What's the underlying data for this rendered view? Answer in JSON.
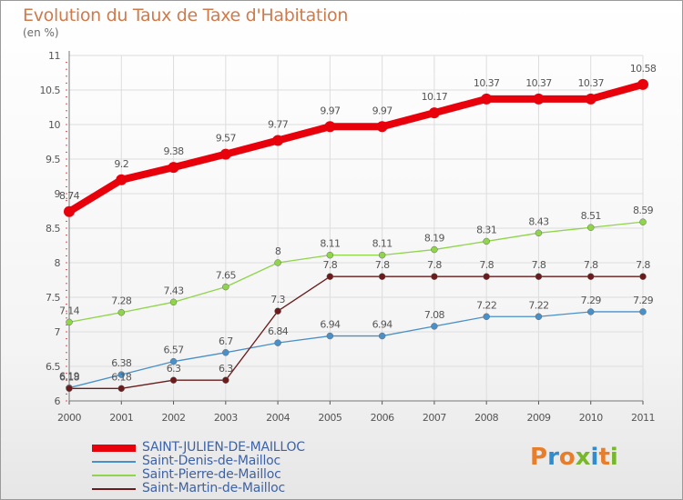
{
  "title": "Evolution du Taux de Taxe d'Habitation",
  "subtitle": "(en %)",
  "logo": {
    "text": "Proxiti",
    "letter_colors": [
      "#e87d2a",
      "#2f8ccf",
      "#e87d2a",
      "#76b82a",
      "#2f8ccf",
      "#e87d2a",
      "#76b82a"
    ]
  },
  "chart_data": {
    "type": "line",
    "x": [
      "2000",
      "2001",
      "2002",
      "2003",
      "2004",
      "2005",
      "2006",
      "2007",
      "2008",
      "2009",
      "2010",
      "2011"
    ],
    "ylim": [
      6,
      11
    ],
    "yticks": [
      "6",
      "6.5",
      "7",
      "7.5",
      "8",
      "8.5",
      "9",
      "9.5",
      "10",
      "10.5",
      "11"
    ],
    "grid": true,
    "legend_position": "bottom-left",
    "series": [
      {
        "name": "SAINT-JULIEN-DE-MAILLOC",
        "color": "#e8000b",
        "values": [
          8.74,
          9.2,
          9.38,
          9.57,
          9.77,
          9.97,
          9.97,
          10.17,
          10.37,
          10.37,
          10.37,
          10.58
        ],
        "labels": [
          "8.74",
          "9.2",
          "9.38",
          "9.57",
          "9.77",
          "9.97",
          "9.97",
          "10.17",
          "10.37",
          "10.37",
          "10.37",
          "10.58"
        ]
      },
      {
        "name": "Saint-Denis-de-Mailloc",
        "color": "#4a90c8",
        "values": [
          6.19,
          6.38,
          6.57,
          6.7,
          6.84,
          6.94,
          6.94,
          7.08,
          7.22,
          7.22,
          7.29,
          7.29
        ],
        "labels": [
          "6.19",
          "6.38",
          "6.57",
          "6.7",
          "6.84",
          "6.94",
          "6.94",
          "7.08",
          "7.22",
          "7.22",
          "7.29",
          "7.29"
        ]
      },
      {
        "name": "Saint-Pierre-de-Mailloc",
        "color": "#8fd44a",
        "values": [
          7.14,
          7.28,
          7.43,
          7.65,
          8,
          8.11,
          8.11,
          8.19,
          8.31,
          8.43,
          8.51,
          8.59
        ],
        "labels": [
          "7.14",
          "7.28",
          "7.43",
          "7.65",
          "8",
          "8.11",
          "8.11",
          "8.19",
          "8.31",
          "8.43",
          "8.51",
          "8.59"
        ]
      },
      {
        "name": "Saint-Martin-de-Mailloc",
        "color": "#6b1b1b",
        "values": [
          6.18,
          6.18,
          6.3,
          6.3,
          7.3,
          7.8,
          7.8,
          7.8,
          7.8,
          7.8,
          7.8,
          7.8
        ],
        "labels": [
          "6.18",
          "6.18",
          "6.3",
          "6.3",
          "7.3",
          "7.8",
          "7.8",
          "7.8",
          "7.8",
          "7.8",
          "7.8",
          "7.8"
        ]
      }
    ]
  }
}
